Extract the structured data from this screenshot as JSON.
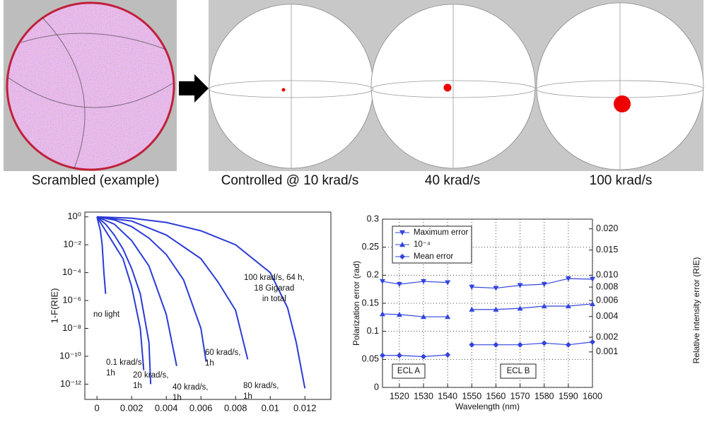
{
  "image_labels": [
    "Scrambled (example)",
    "Controlled @ 10 krad/s",
    "40 krad/s",
    "100 krad/s"
  ],
  "chart_data": [
    {
      "type": "line",
      "ylabel": "1-F(RIE)",
      "yscale": "log",
      "xlim": [
        -0.0007,
        0.0135
      ],
      "ylim": [
        8e-14,
        2.2
      ],
      "xticks": [
        0,
        0.002,
        0.004,
        0.006,
        0.008,
        0.01,
        0.012
      ],
      "yticks": [
        {
          "value": 1,
          "label": "10⁰"
        },
        {
          "value": 0.01,
          "label": "10⁻²"
        },
        {
          "value": 0.0001,
          "label": "10⁻⁴"
        },
        {
          "value": 1e-06,
          "label": "10⁻⁶"
        },
        {
          "value": 1e-08,
          "label": "10⁻⁸"
        },
        {
          "value": 1e-10,
          "label": "10⁻¹⁰"
        },
        {
          "value": 1e-12,
          "label": "10⁻¹²"
        }
      ],
      "grid": false,
      "series": [
        {
          "name": "no light",
          "color": "#2b3bd6",
          "x": [
            0,
            0.0002,
            0.0003,
            0.0004,
            0.0005
          ],
          "values": [
            1,
            0.1,
            0.01,
            0.0001,
            3e-06
          ]
        },
        {
          "name": "0.1 krad/s,\n1h",
          "color": "#2b3bd6",
          "x": [
            0,
            0.0005,
            0.001,
            0.0015,
            0.002,
            0.0025,
            0.0027
          ],
          "values": [
            1,
            0.1,
            0.01,
            0.001,
            1e-05,
            1e-08,
            1e-11
          ]
        },
        {
          "name": "20 krad/s,\n1h",
          "color": "#2b3bd6",
          "x": [
            0,
            0.0005,
            0.001,
            0.0015,
            0.002,
            0.0025,
            0.003,
            0.0031
          ],
          "values": [
            1,
            0.3,
            0.05,
            0.005,
            0.0002,
            3e-06,
            1e-09,
            1e-12
          ]
        },
        {
          "name": "40 krad/s,\n1h",
          "color": "#2b3bd6",
          "x": [
            0,
            0.001,
            0.002,
            0.003,
            0.004,
            0.0046
          ],
          "values": [
            1,
            0.3,
            0.02,
            0.0003,
            1e-07,
            2e-11
          ]
        },
        {
          "name": "60 krad/s,\n1h",
          "color": "#2b3bd6",
          "x": [
            0,
            0.001,
            0.002,
            0.003,
            0.004,
            0.005,
            0.006,
            0.0063
          ],
          "values": [
            1,
            0.6,
            0.2,
            0.03,
            0.002,
            3e-05,
            1e-08,
            4e-11
          ]
        },
        {
          "name": "80 krad/s,\n1h",
          "color": "#2b3bd6",
          "x": [
            0,
            0.002,
            0.004,
            0.006,
            0.007,
            0.008,
            0.0087
          ],
          "values": [
            1,
            0.5,
            0.05,
            0.001,
            2e-05,
            2e-07,
            6e-11
          ]
        },
        {
          "name": "100 krad/s, 64 h,\n18 Gigarad\nin total",
          "color": "#2b3bd6",
          "x": [
            0,
            0.002,
            0.004,
            0.006,
            0.008,
            0.01,
            0.011,
            0.0115,
            0.012
          ],
          "values": [
            1,
            0.8,
            0.4,
            0.1,
            0.01,
            0.0001,
            3e-07,
            1e-09,
            5e-13
          ]
        }
      ]
    },
    {
      "type": "line",
      "xlabel": "Wavelength (nm)",
      "ylabel": "Polarization error (rad)",
      "y2label": "Relative intensity error (RIE)",
      "x": [
        1513,
        1520,
        1530,
        1540,
        1545,
        1550,
        1560,
        1570,
        1580,
        1590,
        1600
      ],
      "xlim": [
        1513,
        1600
      ],
      "xticks": [
        1520,
        1530,
        1540,
        1550,
        1560,
        1570,
        1580,
        1590,
        1600
      ],
      "ylim": [
        0,
        0.3
      ],
      "yticks": [
        0,
        0.05,
        0.1,
        0.15,
        0.2,
        0.25,
        0.3
      ],
      "y2lim": [
        0,
        0.0225
      ],
      "y2scale": "sqrt",
      "y2ticks": [
        0.001,
        0.002,
        0.004,
        0.006,
        0.008,
        {
          "value": 0.01,
          "label": "0.010"
        },
        0.015,
        {
          "value": 0.02,
          "label": "0.020"
        }
      ],
      "grid": true,
      "legend": "upper left",
      "annotations": [
        "ECL A",
        "ECL B"
      ],
      "series": [
        {
          "name": "Maximum error",
          "color": "#3344dd",
          "marker": "triangle-down",
          "values": [
            0.189,
            0.184,
            0.189,
            0.187,
            null,
            0.179,
            0.177,
            0.182,
            0.184,
            0.194,
            0.193
          ]
        },
        {
          "name": "10⁻⁴",
          "color": "#3344dd",
          "marker": "triangle-up",
          "values": [
            0.131,
            0.13,
            0.126,
            0.126,
            null,
            0.139,
            0.139,
            0.141,
            0.145,
            0.145,
            0.149
          ]
        },
        {
          "name": "Mean error",
          "color": "#3344dd",
          "marker": "diamond",
          "values": [
            0.057,
            0.057,
            0.055,
            0.058,
            null,
            0.076,
            0.076,
            0.076,
            0.079,
            0.076,
            0.081
          ]
        }
      ]
    }
  ]
}
